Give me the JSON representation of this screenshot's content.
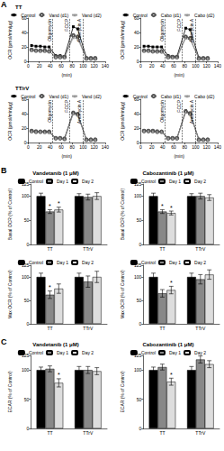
{
  "chart_data": [
    {
      "type": "line",
      "panel_label": "A",
      "title": "TT",
      "x_label": "(min)",
      "y_label": "OCR (pmol/min/μg)",
      "x": [
        6,
        14,
        22,
        30,
        38,
        50,
        58,
        66,
        82,
        90,
        106,
        114,
        122
      ],
      "series": [
        {
          "name": "Control",
          "color": "#000000",
          "marker": "square",
          "values": [
            22,
            21,
            21,
            20,
            20,
            8,
            8,
            7,
            48,
            45,
            5,
            5,
            5
          ]
        },
        {
          "name": "Vand (d1)",
          "color": "#555555",
          "marker": "open_circle",
          "values": [
            16,
            15,
            15,
            15,
            14,
            6,
            6,
            6,
            36,
            34,
            4,
            4,
            4
          ]
        },
        {
          "name": "Vand (d2)",
          "color": "#999999",
          "marker": "triangle",
          "values": [
            15,
            15,
            14,
            14,
            14,
            6,
            5,
            5,
            33,
            31,
            4,
            4,
            4
          ]
        }
      ],
      "annotations": [
        {
          "text": "Oligomycin",
          "x": 44
        },
        {
          "text": "FCCP",
          "x": 75
        },
        {
          "text": "Antimycin A",
          "x": 99
        }
      ],
      "xlim": [
        0,
        140
      ],
      "xticks": [
        0,
        20,
        40,
        60,
        80,
        100,
        120,
        140
      ],
      "ylim": [
        0,
        60
      ],
      "yticks": [
        0,
        20,
        40,
        60
      ],
      "grid": false,
      "legend": "top"
    },
    {
      "type": "line",
      "x_label": "(min)",
      "y_label": "OCR (pmol/min/μg)",
      "x": [
        6,
        14,
        22,
        30,
        38,
        50,
        58,
        66,
        82,
        90,
        106,
        114,
        122
      ],
      "series": [
        {
          "name": "Control",
          "color": "#000000",
          "marker": "square",
          "values": [
            21,
            21,
            20,
            20,
            20,
            8,
            7,
            7,
            46,
            44,
            5,
            5,
            5
          ]
        },
        {
          "name": "Cabo (d1)",
          "color": "#555555",
          "marker": "open_circle",
          "values": [
            15,
            15,
            14,
            14,
            14,
            6,
            6,
            6,
            34,
            32,
            4,
            4,
            4
          ]
        },
        {
          "name": "Cabo (d2)",
          "color": "#999999",
          "marker": "triangle",
          "values": [
            14,
            14,
            14,
            13,
            13,
            5,
            5,
            5,
            32,
            30,
            4,
            4,
            4
          ]
        }
      ],
      "annotations": [
        {
          "text": "Oligomycin",
          "x": 44
        },
        {
          "text": "FCCP",
          "x": 75
        },
        {
          "text": "Antimycin A",
          "x": 99
        }
      ],
      "xlim": [
        0,
        140
      ],
      "xticks": [
        0,
        20,
        40,
        60,
        80,
        100,
        120,
        140
      ],
      "ylim": [
        0,
        60
      ],
      "yticks": [
        0,
        20,
        40,
        60
      ],
      "grid": false,
      "legend": "top"
    },
    {
      "type": "line",
      "title": "TT/rV",
      "x_label": "(min)",
      "y_label": "OCR (pmol/min/μg)",
      "x": [
        6,
        14,
        22,
        30,
        38,
        50,
        58,
        66,
        82,
        90,
        106,
        114,
        122
      ],
      "series": [
        {
          "name": "Control",
          "color": "#000000",
          "marker": "square",
          "values": [
            16,
            16,
            15,
            15,
            15,
            6,
            6,
            6,
            42,
            40,
            4,
            4,
            4
          ]
        },
        {
          "name": "Vand (d1)",
          "color": "#555555",
          "marker": "open_circle",
          "values": [
            16,
            15,
            15,
            15,
            15,
            6,
            6,
            5,
            41,
            39,
            4,
            4,
            4
          ]
        },
        {
          "name": "Vand (d2)",
          "color": "#999999",
          "marker": "triangle",
          "values": [
            15,
            15,
            15,
            14,
            14,
            6,
            6,
            5,
            40,
            38,
            4,
            4,
            4
          ]
        }
      ],
      "annotations": [
        {
          "text": "Oligomycin",
          "x": 44
        },
        {
          "text": "FCCP",
          "x": 75
        },
        {
          "text": "Antimycin A",
          "x": 99
        }
      ],
      "xlim": [
        0,
        140
      ],
      "xticks": [
        0,
        20,
        40,
        60,
        80,
        100,
        120,
        140
      ],
      "ylim": [
        0,
        60
      ],
      "yticks": [
        0,
        20,
        40,
        60
      ],
      "grid": false,
      "legend": "top"
    },
    {
      "type": "line",
      "x_label": "(min)",
      "y_label": "OCR (pmol/min/μg)",
      "x": [
        6,
        14,
        22,
        30,
        38,
        50,
        58,
        66,
        82,
        90,
        106,
        114,
        122
      ],
      "series": [
        {
          "name": "Control",
          "color": "#000000",
          "marker": "square",
          "values": [
            17,
            16,
            16,
            16,
            15,
            6,
            6,
            6,
            44,
            41,
            4,
            4,
            4
          ]
        },
        {
          "name": "Cabo (d1)",
          "color": "#555555",
          "marker": "open_circle",
          "values": [
            16,
            16,
            16,
            15,
            15,
            6,
            6,
            6,
            43,
            40,
            4,
            4,
            4
          ]
        },
        {
          "name": "Cabo (d2)",
          "color": "#999999",
          "marker": "triangle",
          "values": [
            16,
            16,
            15,
            15,
            15,
            6,
            6,
            6,
            42,
            39,
            4,
            4,
            4
          ]
        }
      ],
      "annotations": [
        {
          "text": "Oligomycin",
          "x": 44
        },
        {
          "text": "FCCP",
          "x": 75
        },
        {
          "text": "Antimycin A",
          "x": 99
        }
      ],
      "xlim": [
        0,
        140
      ],
      "xticks": [
        0,
        20,
        40,
        60,
        80,
        100,
        120,
        140
      ],
      "ylim": [
        0,
        60
      ],
      "yticks": [
        0,
        20,
        40,
        60
      ],
      "grid": false,
      "legend": "top"
    },
    {
      "type": "bar",
      "panel_label": "B",
      "title": "Vandetanib (1 μM)",
      "y_label": "Basal OCR (% of Control)",
      "categories": [
        "TT",
        "TTrV"
      ],
      "series": [
        {
          "name": "Control",
          "color": "#000000",
          "values": [
            100,
            100
          ],
          "errors": [
            6,
            5
          ]
        },
        {
          "name": "Day 1",
          "color": "#888888",
          "values": [
            68,
            98
          ],
          "errors": [
            4,
            6
          ],
          "significance": [
            "*",
            null
          ]
        },
        {
          "name": "Day 2",
          "color": "#dddddd",
          "values": [
            72,
            100
          ],
          "errors": [
            5,
            7
          ],
          "significance": [
            "*",
            null
          ]
        }
      ],
      "ylim": [
        0,
        125
      ],
      "yticks": [
        0,
        50,
        100
      ],
      "grid": false,
      "legend": "top"
    },
    {
      "type": "bar",
      "title": "Cabozantinib (1 μM)",
      "y_label": "Basal OCR (% of Control)",
      "categories": [
        "TT",
        "TTrV"
      ],
      "series": [
        {
          "name": "Control",
          "color": "#000000",
          "values": [
            100,
            100
          ],
          "errors": [
            6,
            5
          ]
        },
        {
          "name": "Day 1",
          "color": "#888888",
          "values": [
            68,
            100
          ],
          "errors": [
            4,
            6
          ],
          "significance": [
            "*",
            null
          ]
        },
        {
          "name": "Day 2",
          "color": "#dddddd",
          "values": [
            65,
            97
          ],
          "errors": [
            4,
            6
          ],
          "significance": [
            "*",
            null
          ]
        }
      ],
      "ylim": [
        0,
        125
      ],
      "yticks": [
        0,
        50,
        100
      ],
      "grid": false,
      "legend": "top"
    },
    {
      "type": "bar",
      "y_label": "Max OCR (% of Control)",
      "categories": [
        "TT",
        "TTrV"
      ],
      "series": [
        {
          "name": "Control",
          "color": "#000000",
          "values": [
            100,
            100
          ],
          "errors": [
            8,
            8
          ]
        },
        {
          "name": "Day 1",
          "color": "#888888",
          "values": [
            62,
            90
          ],
          "errors": [
            8,
            12
          ],
          "significance": [
            "*",
            null
          ]
        },
        {
          "name": "Day 2",
          "color": "#dddddd",
          "values": [
            75,
            100
          ],
          "errors": [
            10,
            12
          ]
        }
      ],
      "ylim": [
        0,
        125
      ],
      "yticks": [
        0,
        50,
        100
      ],
      "grid": false,
      "legend": "top"
    },
    {
      "type": "bar",
      "y_label": "Max OCR (% of Control)",
      "categories": [
        "TT",
        "TTrV"
      ],
      "series": [
        {
          "name": "Control",
          "color": "#000000",
          "values": [
            100,
            100
          ],
          "errors": [
            8,
            8
          ]
        },
        {
          "name": "Day 1",
          "color": "#888888",
          "values": [
            65,
            95
          ],
          "errors": [
            8,
            10
          ]
        },
        {
          "name": "Day 2",
          "color": "#dddddd",
          "values": [
            72,
            105
          ],
          "errors": [
            8,
            10
          ],
          "significance": [
            "*",
            null
          ]
        }
      ],
      "ylim": [
        0,
        125
      ],
      "yticks": [
        0,
        50,
        100
      ],
      "grid": false,
      "legend": "top"
    },
    {
      "type": "bar",
      "panel_label": "C",
      "title": "Vandetanib (1 μM)",
      "y_label": "ECAR (% of Control)",
      "categories": [
        "TT",
        "TTrV"
      ],
      "series": [
        {
          "name": "Control",
          "color": "#000000",
          "values": [
            100,
            100
          ],
          "errors": [
            5,
            6
          ]
        },
        {
          "name": "Day 1",
          "color": "#888888",
          "values": [
            102,
            100
          ],
          "errors": [
            5,
            6
          ]
        },
        {
          "name": "Day 2",
          "color": "#dddddd",
          "values": [
            78,
            98
          ],
          "errors": [
            7,
            6
          ],
          "significance": [
            "*",
            null
          ]
        }
      ],
      "ylim": [
        0,
        125
      ],
      "yticks": [
        0,
        50,
        100
      ],
      "grid": false,
      "legend": "top"
    },
    {
      "type": "bar",
      "title": "Cabozantinib (1 μM)",
      "y_label": "ECAR (% of Control)",
      "categories": [
        "TT",
        "TTrV"
      ],
      "series": [
        {
          "name": "Control",
          "color": "#000000",
          "values": [
            100,
            100
          ],
          "errors": [
            5,
            6
          ]
        },
        {
          "name": "Day 1",
          "color": "#888888",
          "values": [
            105,
            118
          ],
          "errors": [
            5,
            6
          ]
        },
        {
          "name": "Day 2",
          "color": "#dddddd",
          "values": [
            80,
            110
          ],
          "errors": [
            6,
            6
          ],
          "significance": [
            "*",
            null
          ]
        }
      ],
      "ylim": [
        0,
        125
      ],
      "yticks": [
        0,
        50,
        100
      ],
      "grid": false,
      "legend": "top"
    }
  ]
}
